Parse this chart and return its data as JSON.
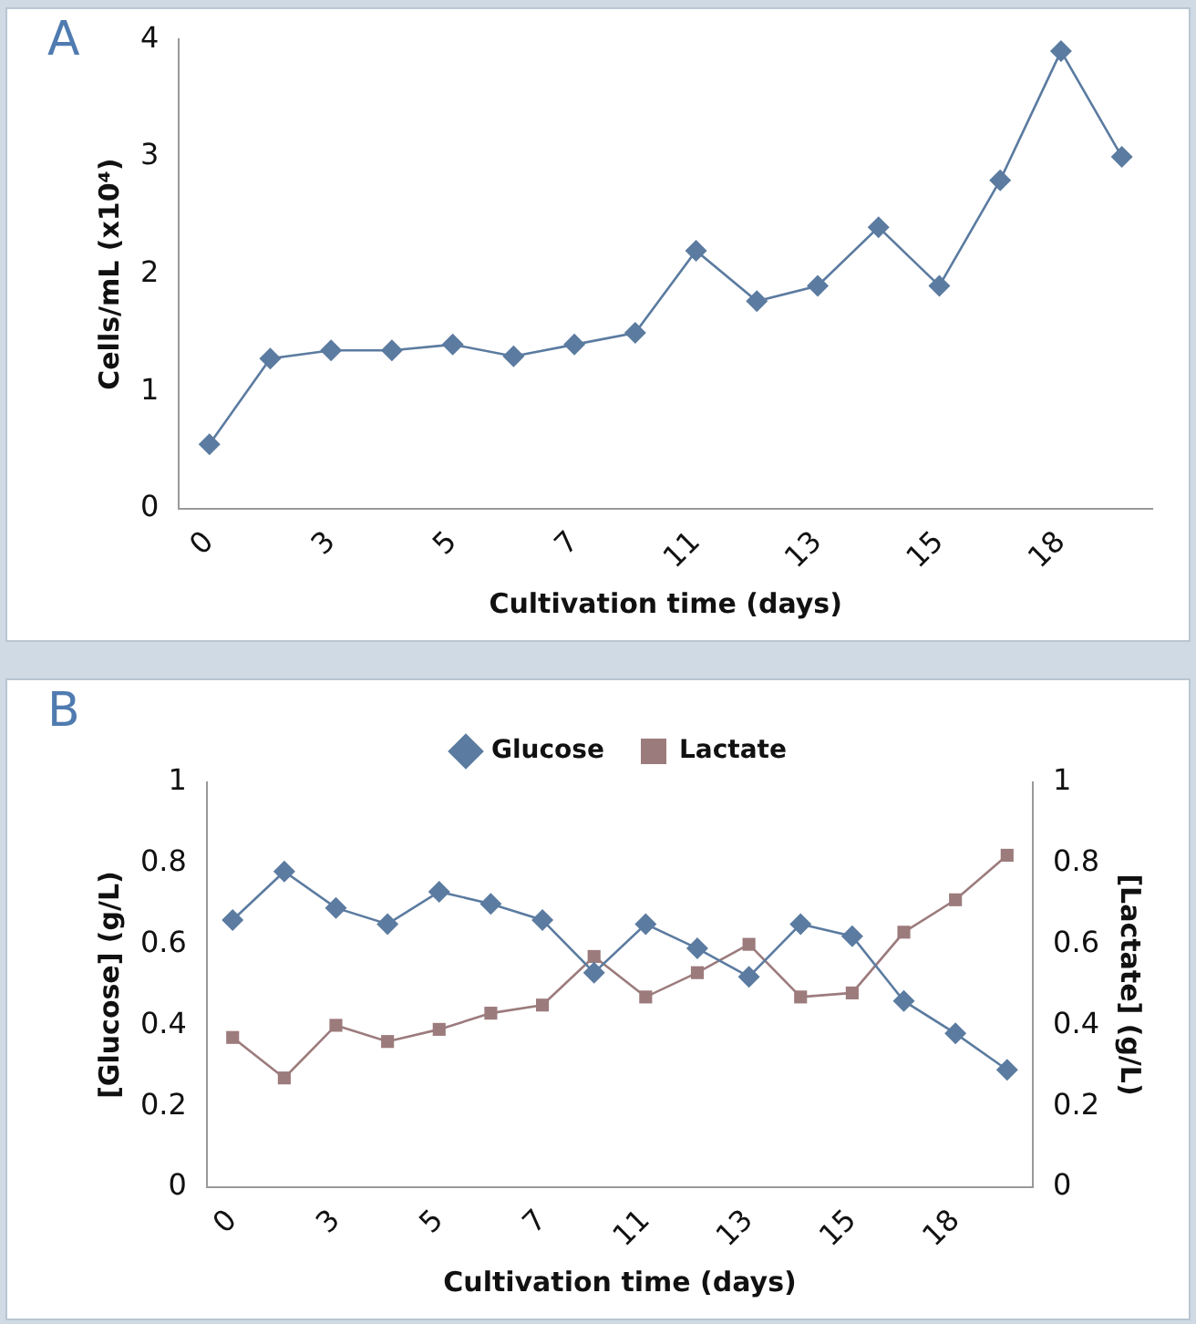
{
  "chart_data": [
    {
      "type": "line",
      "annotations": [
        "A"
      ],
      "ylabel": "Cells/mL (x10⁴)",
      "xlabel": "Cultivation time (days)",
      "categories": [
        "0",
        null,
        "3",
        null,
        "5",
        null,
        "7",
        null,
        "11",
        null,
        "13",
        null,
        "15",
        null,
        "18",
        null
      ],
      "series": [
        {
          "color": "#5b7ba0",
          "values": [
            0.55,
            1.28,
            1.35,
            1.35,
            1.4,
            1.3,
            1.4,
            1.5,
            2.2,
            1.77,
            1.9,
            2.4,
            1.9,
            2.8,
            3.9,
            3.0
          ]
        }
      ],
      "ylim": [
        0,
        4
      ],
      "yticks": [
        0,
        1,
        2,
        3,
        4
      ],
      "grid": false,
      "legend": false,
      "marker": "diamond"
    },
    {
      "type": "line",
      "annotations": [
        "B"
      ],
      "ylabel": "[Glucose] (g/L)",
      "y2label": "[Lactate] (g/L)",
      "xlabel": "Cultivation time (days)",
      "categories": [
        "0",
        null,
        "3",
        null,
        "5",
        null,
        "7",
        null,
        "11",
        null,
        "13",
        null,
        "15",
        null,
        "18",
        null
      ],
      "series": [
        {
          "name": "Glucose",
          "color": "#5b7ba0",
          "marker": "diamond",
          "values": [
            0.66,
            0.78,
            0.69,
            0.65,
            0.73,
            0.7,
            0.66,
            0.53,
            0.65,
            0.59,
            0.52,
            0.65,
            0.62,
            0.46,
            0.38,
            0.29
          ]
        },
        {
          "name": "Lactate",
          "color": "#9c7b7d",
          "marker": "square",
          "axis": "y2",
          "values": [
            0.37,
            0.27,
            0.4,
            0.36,
            0.39,
            0.43,
            0.45,
            0.57,
            0.47,
            0.53,
            0.6,
            0.47,
            0.48,
            0.63,
            0.71,
            0.82
          ]
        }
      ],
      "ylim": [
        0,
        1
      ],
      "yticks": [
        0,
        0.2,
        0.4,
        0.6,
        0.8,
        1
      ],
      "y2lim": [
        0,
        1
      ],
      "y2ticks": [
        0,
        0.2,
        0.4,
        0.6,
        0.8,
        1
      ],
      "grid": false,
      "legend": "top"
    }
  ]
}
